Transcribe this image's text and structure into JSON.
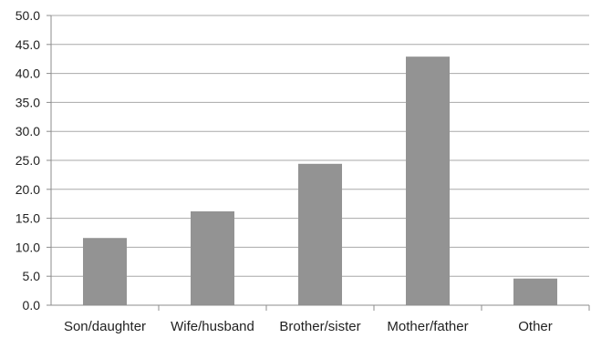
{
  "chart_data": {
    "type": "bar",
    "title": "",
    "xlabel": "",
    "ylabel": "",
    "categories": [
      "Son/daughter",
      "Wife/husband",
      "Brother/sister",
      "Mother/father",
      "Other"
    ],
    "values": [
      11.6,
      16.2,
      24.4,
      42.9,
      4.6
    ],
    "ylim": [
      0,
      50
    ],
    "yticks": [
      "0.0",
      "5.0",
      "10.0",
      "15.0",
      "20.0",
      "25.0",
      "30.0",
      "35.0",
      "40.0",
      "45.0",
      "50.0"
    ],
    "grid": true,
    "legend": "none",
    "colors": {
      "bar": "#939393",
      "grid": "#a8a8a8",
      "axis": "#8c8c8c",
      "text": "#222222"
    }
  }
}
